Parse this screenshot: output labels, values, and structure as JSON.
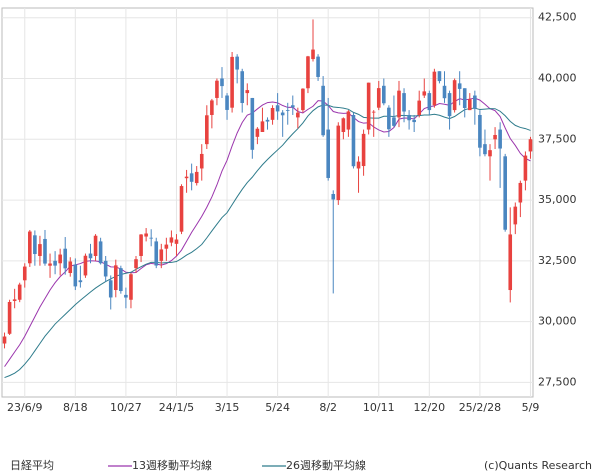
{
  "chart_data": {
    "type": "candlestick",
    "name": "日経平均",
    "source": "(c)Quants Research",
    "up_color": "#e8423f",
    "down_color": "#4a86c0",
    "categories": [
      null,
      null,
      null,
      null,
      "23/6/9",
      null,
      null,
      null,
      null,
      null,
      null,
      null,
      null,
      null,
      "8/18",
      null,
      null,
      null,
      null,
      null,
      null,
      null,
      null,
      null,
      "10/27",
      null,
      null,
      null,
      null,
      null,
      null,
      null,
      null,
      null,
      "24/1/5",
      null,
      null,
      null,
      null,
      null,
      null,
      null,
      null,
      null,
      "3/15",
      null,
      null,
      null,
      null,
      null,
      null,
      null,
      null,
      null,
      "5/24",
      null,
      null,
      null,
      null,
      null,
      null,
      null,
      null,
      null,
      "8/2",
      null,
      null,
      null,
      null,
      null,
      null,
      null,
      null,
      null,
      "10/11",
      null,
      null,
      null,
      null,
      null,
      null,
      null,
      null,
      null,
      "12/20",
      null,
      null,
      null,
      null,
      null,
      null,
      null,
      null,
      null,
      "25/2/28",
      null,
      null,
      null,
      null,
      null,
      null,
      null,
      null,
      null,
      "5/9"
    ],
    "open": [
      29100,
      29500,
      30850,
      30900,
      31700,
      32400,
      33550,
      32700,
      33400,
      32300,
      32500,
      32400,
      33000,
      32000,
      32350,
      31700,
      31900,
      32800,
      32700,
      33300,
      32500,
      31700,
      31300,
      32200,
      31100,
      30900,
      32200,
      32700,
      33500,
      33450,
      33300,
      32500,
      33000,
      33250,
      33200,
      33700,
      35900,
      36100,
      35700,
      36300,
      37300,
      38500,
      39200,
      40000,
      39300,
      38800,
      40900,
      40300,
      39400,
      39200,
      37600,
      37800,
      38300,
      38300,
      38900,
      38600,
      38700,
      38900,
      38400,
      38700,
      39600,
      40800,
      40900,
      39700,
      37900,
      35250,
      35000,
      37800,
      37900,
      38500,
      36300,
      36400,
      37900,
      38600,
      38800,
      39700,
      38800,
      38400,
      38400,
      39400,
      38500,
      38300,
      38500,
      39300,
      39400,
      38900,
      40300,
      39700,
      39400,
      38700,
      39800,
      39600,
      38700,
      39300,
      38500,
      37300,
      36800,
      37500,
      37900,
      36800,
      31300,
      34000,
      34900,
      35800,
      37000
    ],
    "high": [
      29550,
      30900,
      31350,
      31600,
      32400,
      33770,
      33750,
      33530,
      33770,
      32800,
      32900,
      33000,
      33480,
      32650,
      32600,
      32300,
      32800,
      33200,
      33600,
      33450,
      32700,
      31900,
      32550,
      32300,
      31400,
      32000,
      32700,
      33600,
      33850,
      33800,
      33450,
      33200,
      33450,
      33750,
      33600,
      35650,
      36240,
      36500,
      36400,
      37300,
      38900,
      39160,
      40000,
      40470,
      39400,
      41090,
      41000,
      40400,
      39800,
      39200,
      38000,
      38800,
      38400,
      38900,
      39400,
      38700,
      39000,
      39300,
      38800,
      39600,
      40930,
      42430,
      41000,
      40100,
      39200,
      35400,
      38200,
      38400,
      38700,
      38600,
      36800,
      37900,
      39830,
      38700,
      39900,
      40000,
      38900,
      39300,
      39900,
      39600,
      38700,
      38500,
      39500,
      40000,
      39500,
      40400,
      40300,
      40300,
      39500,
      40000,
      40300,
      39600,
      39400,
      39500,
      38700,
      37900,
      37300,
      38000,
      38200,
      36900,
      34700,
      34900,
      35800,
      37000,
      37600
    ],
    "low": [
      28900,
      29450,
      30550,
      30800,
      31400,
      32250,
      32300,
      32300,
      32300,
      31800,
      31950,
      31900,
      31930,
      31850,
      31300,
      31400,
      31800,
      32400,
      32500,
      32350,
      31650,
      30500,
      31000,
      31150,
      30550,
      30550,
      32000,
      32450,
      33300,
      33100,
      32200,
      32200,
      32500,
      33100,
      32700,
      33600,
      35300,
      35400,
      35600,
      35800,
      37100,
      37950,
      38900,
      39200,
      38300,
      38600,
      39800,
      38600,
      38900,
      36700,
      37300,
      37800,
      37900,
      38100,
      38300,
      37600,
      38100,
      38500,
      37950,
      38600,
      39400,
      40700,
      39900,
      37600,
      35800,
      31160,
      34800,
      37500,
      37600,
      36300,
      35300,
      36000,
      37700,
      37600,
      38700,
      38900,
      37600,
      38000,
      38000,
      38200,
      37900,
      37800,
      38400,
      39200,
      38500,
      38800,
      39800,
      39000,
      37900,
      38600,
      38900,
      38400,
      38700,
      38100,
      36800,
      36800,
      35800,
      37100,
      35500,
      33700,
      30790,
      33600,
      34300,
      35400,
      36700
    ],
    "close": [
      29388,
      30808,
      30916,
      31524,
      32265,
      33706,
      32781,
      33189,
      32388,
      32391,
      32304,
      32759,
      32192,
      32473,
      31450,
      31624,
      32710,
      32606,
      33533,
      32402,
      31857,
      30994,
      32315,
      31259,
      30991,
      31949,
      32568,
      33585,
      33625,
      33431,
      32307,
      32970,
      33169,
      33464,
      33377,
      35577,
      35963,
      35751,
      36158,
      36897,
      38487,
      39098,
      39910,
      39688,
      38707,
      40888,
      40369,
      38992,
      39523,
      37068,
      37934,
      38236,
      38229,
      38787,
      38646,
      38487,
      38683,
      38814,
      38596,
      39583,
      40912,
      41190,
      40063,
      37667,
      35909,
      35025,
      38062,
      38364,
      38647,
      36391,
      36581,
      37723,
      39829,
      38635,
      39605,
      38981,
      37913,
      38053,
      39500,
      38642,
      38283,
      38208,
      39091,
      39470,
      38701,
      40281,
      39894,
      39190,
      38451,
      39931,
      39572,
      38787,
      39149,
      38776,
      37155,
      36887,
      37053,
      37677,
      37120,
      33780,
      33586,
      34730,
      35705,
      36830,
      37503
    ],
    "series": [
      {
        "name": "13週移動平均線",
        "color": "#9b36ad",
        "values": [
          28150,
          28450,
          28750,
          29050,
          29400,
          29800,
          30200,
          30600,
          30950,
          31300,
          31600,
          31850,
          32047,
          32284,
          32334,
          32388,
          32479,
          32506,
          32492,
          32463,
          32361,
          32253,
          32248,
          32167,
          32031,
          32013,
          32020,
          32184,
          32338,
          32393,
          32370,
          32327,
          32386,
          32510,
          32693,
          32944,
          33306,
          33672,
          33996,
          34329,
          34706,
          35127,
          35625,
          36193,
          36634,
          37228,
          37759,
          38191,
          38495,
          38580,
          38748,
          38907,
          39010,
          39033,
          38998,
          38889,
          38811,
          38820,
          38643,
          38583,
          38731,
          38859,
          39089,
          39069,
          38890,
          38643,
          38588,
          38566,
          38578,
          38402,
          38230,
          38163,
          38182,
          38007,
          37885,
          37801,
          37820,
          37985,
          38330,
          38374,
          38368,
          38334,
          38542,
          38764,
          38839,
          38874,
          38971,
          38939,
          38898,
          39053,
          39170,
          39116,
          39154,
          39192,
          39111,
          38942,
          38756,
          38677,
          38434,
          37964,
          37533,
          37246,
          36921,
          36710,
          36612
        ]
      },
      {
        "name": "26週移動平均線",
        "color": "#2f7c8c",
        "values": [
          27700,
          27780,
          27880,
          28030,
          28250,
          28500,
          28800,
          29100,
          29400,
          29650,
          29900,
          30100,
          30300,
          30500,
          30700,
          30880,
          31050,
          31220,
          31380,
          31520,
          31650,
          31760,
          31860,
          31940,
          31990,
          32030,
          32152,
          32259,
          32363,
          32436,
          32438,
          32410,
          32425,
          32435,
          32473,
          32596,
          32737,
          32852,
          33004,
          33174,
          33445,
          33732,
          34009,
          34282,
          34481,
          34807,
          35134,
          35442,
          35719,
          35943,
          36210,
          36452,
          36669,
          36869,
          37062,
          37257,
          37502,
          37727,
          37936,
          38171,
          38461,
          38677,
          38834,
          38908,
          38899,
          38827,
          38810,
          38782,
          38733,
          38607,
          38525,
          38403,
          38382,
          38369,
          38372,
          38445,
          38445,
          38438,
          38486,
          38481,
          38467,
          38456,
          38472,
          38497,
          38501,
          38528,
          38489,
          38412,
          38350,
          38437,
          38578,
          38722,
          38764,
          38780,
          38723,
          38742,
          38760,
          38758,
          38654,
          38467,
          38236,
          38072,
          37987,
          37940,
          37864
        ]
      }
    ],
    "ylim": [
      26900,
      42900
    ],
    "yticks": [
      {
        "value": 27500,
        "label": "27,500"
      },
      {
        "value": 30000,
        "label": "30,000"
      },
      {
        "value": 32500,
        "label": "32,500"
      },
      {
        "value": 35000,
        "label": "35,000"
      },
      {
        "value": 37500,
        "label": "37,500"
      },
      {
        "value": 40000,
        "label": "40,000"
      },
      {
        "value": 42500,
        "label": "42,500"
      }
    ],
    "grid": true
  }
}
